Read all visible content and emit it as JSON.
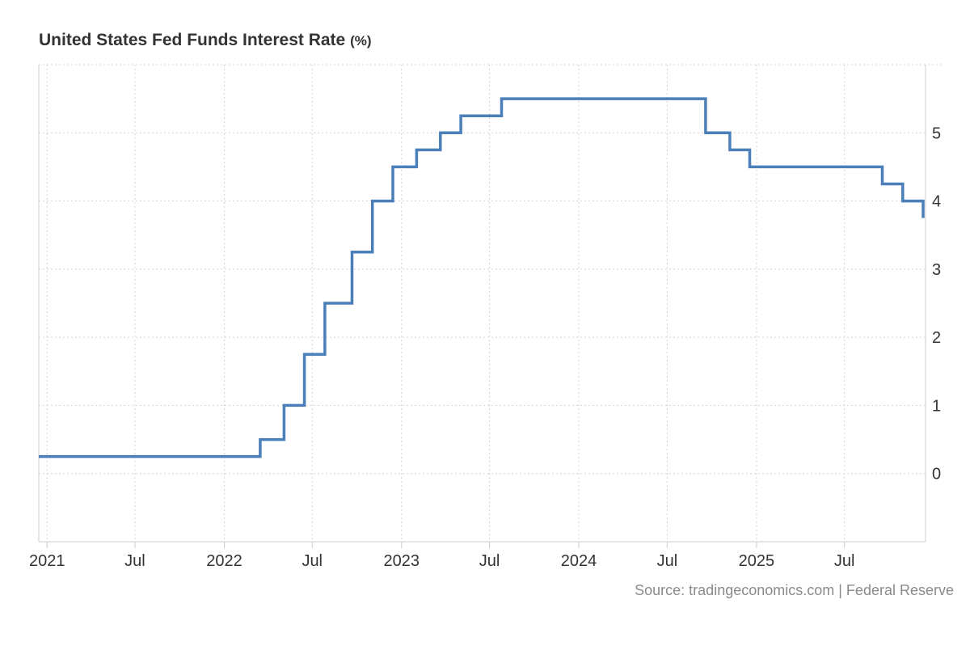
{
  "chart_data": {
    "type": "line",
    "step": true,
    "title": "United States Fed Funds Interest Rate",
    "unit_label": "(%)",
    "ylabel": "",
    "xlabel": "",
    "ylim": [
      -1,
      6
    ],
    "xlim": [
      "2020-12-15",
      "2025-12-15"
    ],
    "y_ticks": [
      0,
      1,
      2,
      3,
      4,
      5
    ],
    "x_ticks": [
      {
        "date": "2021-01-01",
        "label": "2021"
      },
      {
        "date": "2021-07-01",
        "label": "Jul"
      },
      {
        "date": "2022-01-01",
        "label": "2022"
      },
      {
        "date": "2022-07-01",
        "label": "Jul"
      },
      {
        "date": "2023-01-01",
        "label": "2023"
      },
      {
        "date": "2023-07-01",
        "label": "Jul"
      },
      {
        "date": "2024-01-01",
        "label": "2024"
      },
      {
        "date": "2024-07-01",
        "label": "Jul"
      },
      {
        "date": "2025-01-01",
        "label": "2025"
      },
      {
        "date": "2025-07-01",
        "label": "Jul"
      }
    ],
    "y_axis_position": "right",
    "grid": true,
    "grid_style": "dotted",
    "line_color": "#4a7fba",
    "series": [
      {
        "points": [
          {
            "x": "2020-12-15",
            "y": 0.25
          },
          {
            "x": "2022-03-16",
            "y": 0.5
          },
          {
            "x": "2022-05-04",
            "y": 1.0
          },
          {
            "x": "2022-06-15",
            "y": 1.75
          },
          {
            "x": "2022-07-27",
            "y": 2.5
          },
          {
            "x": "2022-09-21",
            "y": 3.25
          },
          {
            "x": "2022-11-02",
            "y": 4.0
          },
          {
            "x": "2022-12-14",
            "y": 4.5
          },
          {
            "x": "2023-02-01",
            "y": 4.75
          },
          {
            "x": "2023-03-22",
            "y": 5.0
          },
          {
            "x": "2023-05-03",
            "y": 5.25
          },
          {
            "x": "2023-07-26",
            "y": 5.5
          },
          {
            "x": "2024-09-18",
            "y": 5.0
          },
          {
            "x": "2024-11-07",
            "y": 4.75
          },
          {
            "x": "2024-12-18",
            "y": 4.5
          },
          {
            "x": "2025-09-17",
            "y": 4.25
          },
          {
            "x": "2025-10-29",
            "y": 4.0
          },
          {
            "x": "2025-12-10",
            "y": 3.75
          }
        ]
      }
    ],
    "source": "Source: tradingeconomics.com | Federal Reserve"
  }
}
